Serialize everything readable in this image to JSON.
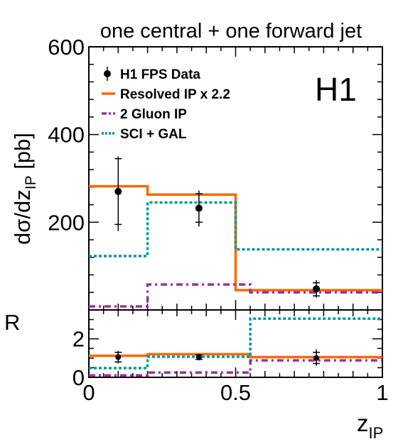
{
  "title": "one central + one forward jet",
  "experiment_label": "H1",
  "y_axis_label": {
    "main": "dσ/dz",
    "sub": "IP",
    "unit": " [pb]"
  },
  "x_axis_label": {
    "main": "z",
    "sub": "IP"
  },
  "ratio_label": "R",
  "legend": [
    {
      "label": "H1 FPS Data",
      "style": "marker"
    },
    {
      "label": "Resolved IP x 2.2",
      "color": "#ff6600",
      "style": "solid"
    },
    {
      "label": "2 Gluon IP",
      "color": "#993399",
      "style": "dashdot"
    },
    {
      "label": "SCI + GAL",
      "color": "#009999",
      "style": "dotted"
    }
  ],
  "chart_data": [
    {
      "type": "line",
      "panel": "main",
      "xlim": [
        0,
        1
      ],
      "ylim": [
        0,
        600
      ],
      "yticks": [
        200,
        400,
        600
      ],
      "data_points": [
        {
          "x": 0.1,
          "y": 270,
          "stat_low": 195,
          "stat_high": 345,
          "tot_low": 180,
          "tot_high": 350
        },
        {
          "x": 0.375,
          "y": 232,
          "stat_low": 200,
          "stat_high": 265,
          "tot_low": 190,
          "tot_high": 272
        },
        {
          "x": 0.775,
          "y": 48,
          "stat_low": 32,
          "stat_high": 62,
          "tot_low": 28,
          "tot_high": 68
        }
      ],
      "series": [
        {
          "name": "Resolved IP x 2.2",
          "color": "#ff6600",
          "style": "solid",
          "bins": [
            [
              0,
              0.2,
              282
            ],
            [
              0.2,
              0.5,
              263
            ],
            [
              0.5,
              1.0,
              45
            ]
          ]
        },
        {
          "name": "2 Gluon IP",
          "color": "#993399",
          "style": "dashdot",
          "bins": [
            [
              0,
              0.2,
              8
            ],
            [
              0.2,
              0.55,
              58
            ],
            [
              0.55,
              1.0,
              40
            ]
          ]
        },
        {
          "name": "SCI + GAL",
          "color": "#009999",
          "style": "dotted",
          "bins": [
            [
              0,
              0.2,
              123
            ],
            [
              0.2,
              0.5,
              245
            ],
            [
              0.5,
              1.0,
              138
            ]
          ]
        }
      ]
    },
    {
      "type": "line",
      "panel": "ratio",
      "xlim": [
        0,
        1
      ],
      "ylim": [
        0,
        3.5
      ],
      "yticks": [
        0,
        2
      ],
      "xticks": [
        0,
        0.5,
        1
      ],
      "xtick_labels": [
        "0",
        "0.5",
        "1"
      ],
      "data_points": [
        {
          "x": 0.1,
          "y": 1.05,
          "stat_low": 0.8,
          "stat_high": 1.3,
          "tot_low": 0.72,
          "tot_high": 1.38
        },
        {
          "x": 0.375,
          "y": 1.05,
          "stat_low": 0.93,
          "stat_high": 1.17,
          "tot_low": 0.88,
          "tot_high": 1.22
        },
        {
          "x": 0.775,
          "y": 1.0,
          "stat_low": 0.72,
          "stat_high": 1.3,
          "tot_low": 0.6,
          "tot_high": 1.45
        }
      ],
      "series": [
        {
          "name": "Resolved IP x 2.2",
          "color": "#ff6600",
          "style": "solid",
          "bins": [
            [
              0,
              0.2,
              1.12
            ],
            [
              0.2,
              0.55,
              1.2
            ],
            [
              0.55,
              1.0,
              1.05
            ]
          ]
        },
        {
          "name": "2 Gluon IP",
          "color": "#993399",
          "style": "dashdot",
          "bins": [
            [
              0,
              0.2,
              0.1
            ],
            [
              0.2,
              0.55,
              0.25
            ],
            [
              0.55,
              1.0,
              0.88
            ]
          ]
        },
        {
          "name": "SCI + GAL",
          "color": "#009999",
          "style": "dotted",
          "bins": [
            [
              0,
              0.2,
              0.48
            ],
            [
              0.2,
              0.55,
              1.07
            ],
            [
              0.55,
              1.0,
              3.05
            ]
          ]
        }
      ]
    }
  ]
}
